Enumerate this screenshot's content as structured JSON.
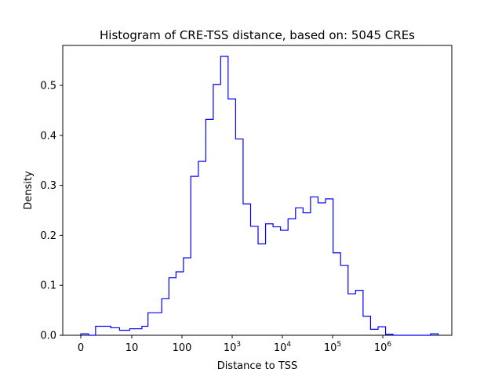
{
  "chart_data": {
    "type": "histogram",
    "title": "Histogram of CRE-TSS distance, based on: 5045 CREs",
    "xlabel": "Distance to TSS",
    "ylabel": "Density",
    "x_scale": "symlog",
    "ylim": [
      0,
      0.58
    ],
    "grid": false,
    "legend": "none",
    "x_ticks": [
      {
        "value": 0,
        "label": "0"
      },
      {
        "value": 10,
        "label": "10"
      },
      {
        "value": 100,
        "label": "100"
      },
      {
        "value": 1000,
        "label": "10",
        "exponent": "3"
      },
      {
        "value": 10000,
        "label": "10",
        "exponent": "4"
      },
      {
        "value": 100000,
        "label": "10",
        "exponent": "5"
      },
      {
        "value": 1000000,
        "label": "10",
        "exponent": "6"
      }
    ],
    "y_ticks": [
      {
        "value": 0.0,
        "label": "0.0"
      },
      {
        "value": 0.1,
        "label": "0.1"
      },
      {
        "value": 0.2,
        "label": "0.2"
      },
      {
        "value": 0.3,
        "label": "0.3"
      },
      {
        "value": 0.4,
        "label": "0.4"
      },
      {
        "value": 0.5,
        "label": "0.5"
      }
    ],
    "series": [
      {
        "color": "#0000ff",
        "bin_edges": [
          0,
          1.5,
          2.9,
          4.4,
          5.9,
          7.6,
          9.6,
          12.2,
          15.9,
          21,
          28.6,
          39.5,
          55,
          76,
          107,
          150,
          212,
          298,
          420,
          590,
          830,
          1170,
          1650,
          2330,
          3280,
          4620,
          6520,
          9200,
          12970,
          18300,
          25800,
          36400,
          51400,
          72500,
          102300,
          144300,
          203600,
          287000,
          405000,
          571000,
          806000,
          1137000,
          1604000,
          2263000,
          3193000,
          4505000,
          6355000,
          8966000,
          12650000
        ],
        "values": [
          0.003,
          0.0,
          0.018,
          0.018,
          0.015,
          0.01,
          0.013,
          0.013,
          0.018,
          0.045,
          0.045,
          0.073,
          0.115,
          0.127,
          0.155,
          0.318,
          0.348,
          0.432,
          0.502,
          0.558,
          0.473,
          0.393,
          0.263,
          0.218,
          0.183,
          0.223,
          0.217,
          0.21,
          0.233,
          0.255,
          0.245,
          0.277,
          0.265,
          0.273,
          0.165,
          0.14,
          0.083,
          0.09,
          0.038,
          0.012,
          0.017,
          0.002,
          0.0,
          0.0,
          0.0,
          0.0,
          0.0,
          0.003
        ]
      }
    ]
  }
}
